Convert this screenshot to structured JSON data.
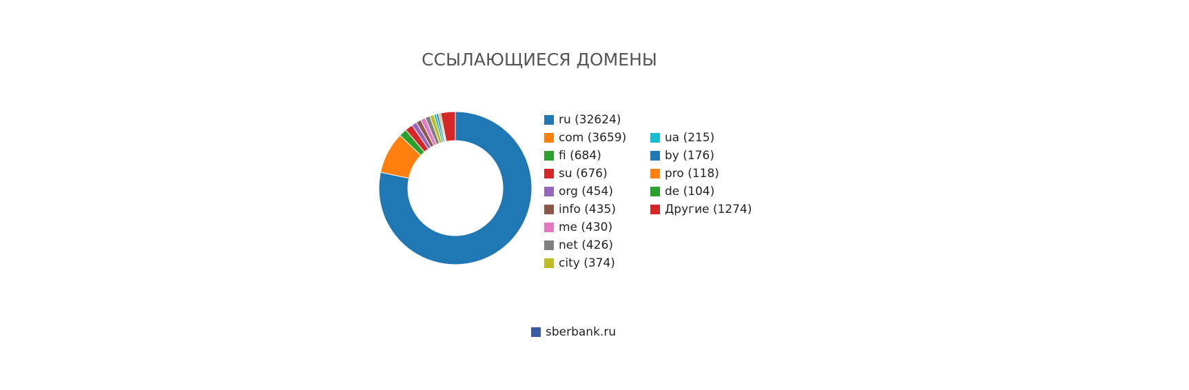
{
  "chart_data": {
    "type": "pie",
    "donut": true,
    "title": "ССЫЛАЮЩИЕСЯ ДОМЕНЫ",
    "categories": [
      "ru (32624)",
      "com (3659)",
      "fi (684)",
      "su (676)",
      "org (454)",
      "info (435)",
      "me (430)",
      "net (426)",
      "city (374)",
      "ua (215)",
      "by (176)",
      "pro (118)",
      "de (104)",
      "Другие (1274)"
    ],
    "values": [
      32624,
      3659,
      684,
      676,
      454,
      435,
      430,
      426,
      374,
      215,
      176,
      118,
      104,
      1274
    ],
    "colors": [
      "#1f77b4",
      "#ff7f0e",
      "#2ca02c",
      "#d62728",
      "#9467bd",
      "#8c564b",
      "#e377c2",
      "#7f7f7f",
      "#bcbd22",
      "#17becf",
      "#1f77b4",
      "#ff7f0e",
      "#2ca02c",
      "#d62728"
    ],
    "series_name": "sberbank.ru",
    "series_color": "#3b5ba5"
  }
}
